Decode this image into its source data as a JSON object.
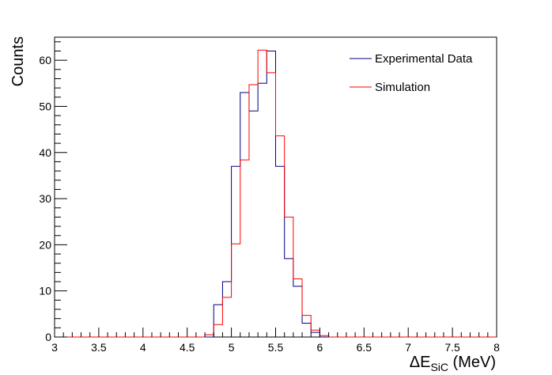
{
  "chart_data": {
    "type": "histogram",
    "title": "",
    "xlabel": {
      "main": "ΔE",
      "sub": "SiC",
      "unit": " (MeV)"
    },
    "ylabel": "Counts",
    "xlim": [
      3,
      8
    ],
    "ylim": [
      0,
      65
    ],
    "bin_width": 0.1,
    "x_ticks": [
      3,
      3.5,
      4,
      4.5,
      5,
      5.5,
      6,
      6.5,
      7,
      7.5,
      8
    ],
    "x_tick_labels": [
      "3",
      "3.5",
      "4",
      "4.5",
      "5",
      "5.5",
      "6",
      "6.5",
      "7",
      "7.5",
      "8"
    ],
    "y_ticks": [
      0,
      10,
      20,
      30,
      40,
      50,
      60
    ],
    "y_tick_labels": [
      "0",
      "10",
      "20",
      "30",
      "40",
      "50",
      "60"
    ],
    "legend_position": "top-right",
    "series": [
      {
        "name": "Experimental Data",
        "color": "#000080",
        "bin_low_edges": [
          4.7,
          4.8,
          4.9,
          5.0,
          5.1,
          5.2,
          5.3,
          5.4,
          5.5,
          5.6,
          5.7,
          5.8,
          5.9,
          6.0
        ],
        "values": [
          0,
          7,
          12,
          37,
          53,
          49,
          55,
          62,
          37,
          17,
          11,
          3,
          1,
          0
        ]
      },
      {
        "name": "Simulation",
        "color": "#ff0000",
        "bin_low_edges": [
          4.7,
          4.8,
          4.9,
          5.0,
          5.1,
          5.2,
          5.3,
          5.4,
          5.5,
          5.6,
          5.7,
          5.8,
          5.9,
          6.0,
          6.1
        ],
        "values": [
          0.5,
          2.7,
          8.6,
          20.2,
          38.4,
          54.7,
          62.2,
          57.3,
          43.6,
          26.0,
          12.6,
          4.7,
          1.5,
          0.3,
          0
        ]
      }
    ]
  }
}
